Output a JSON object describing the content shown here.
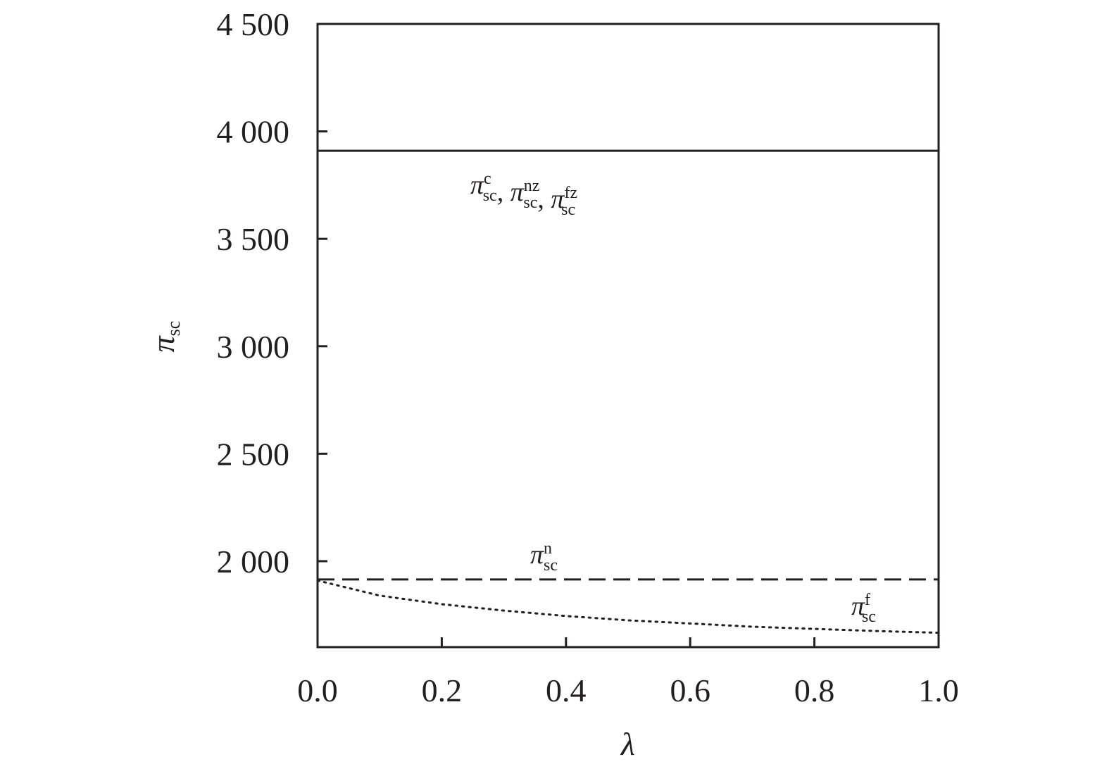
{
  "chart_data": {
    "type": "line",
    "xlabel": "λ",
    "ylabel": {
      "symbol": "π",
      "sub": "sc"
    },
    "xlim": [
      0.0,
      1.0
    ],
    "ylim": [
      1600,
      4500
    ],
    "x_ticks": [
      "0.0",
      "0.2",
      "0.4",
      "0.6",
      "0.8",
      "1.0"
    ],
    "y_ticks": [
      {
        "value": 2000,
        "label": "2 000"
      },
      {
        "value": 2500,
        "label": "2 500"
      },
      {
        "value": 3000,
        "label": "3 000"
      },
      {
        "value": 3500,
        "label": "3 500"
      },
      {
        "value": 4000,
        "label": "4 000"
      },
      {
        "value": 4500,
        "label": "4 500"
      }
    ],
    "grid": false,
    "legend": "none",
    "series": [
      {
        "style": "solid",
        "x": [
          0.0,
          1.0
        ],
        "y": [
          3910,
          3910
        ]
      },
      {
        "style": "dashed",
        "x": [
          0.0,
          1.0
        ],
        "y": [
          1915,
          1915
        ]
      },
      {
        "style": "dotted",
        "x": [
          0.0,
          0.1,
          0.2,
          0.3,
          0.4,
          0.5,
          0.6,
          0.7,
          0.8,
          0.9,
          1.0
        ],
        "y": [
          1910,
          1840,
          1800,
          1770,
          1745,
          1725,
          1710,
          1695,
          1685,
          1675,
          1667
        ]
      }
    ],
    "annotations": [
      {
        "id": "solid-line-label",
        "parts": [
          {
            "sym": "π",
            "sup": "c",
            "sub": "sc"
          },
          {
            "sym": "π",
            "sup": "nz",
            "sub": "sc"
          },
          {
            "sym": "π",
            "sup": "fz",
            "sub": "sc"
          }
        ],
        "separator": ", "
      },
      {
        "id": "dashed-line-label",
        "parts": [
          {
            "sym": "π",
            "sup": "n",
            "sub": "sc"
          }
        ]
      },
      {
        "id": "dotted-line-label",
        "parts": [
          {
            "sym": "π",
            "sup": "f",
            "sub": "sc"
          }
        ]
      }
    ]
  }
}
